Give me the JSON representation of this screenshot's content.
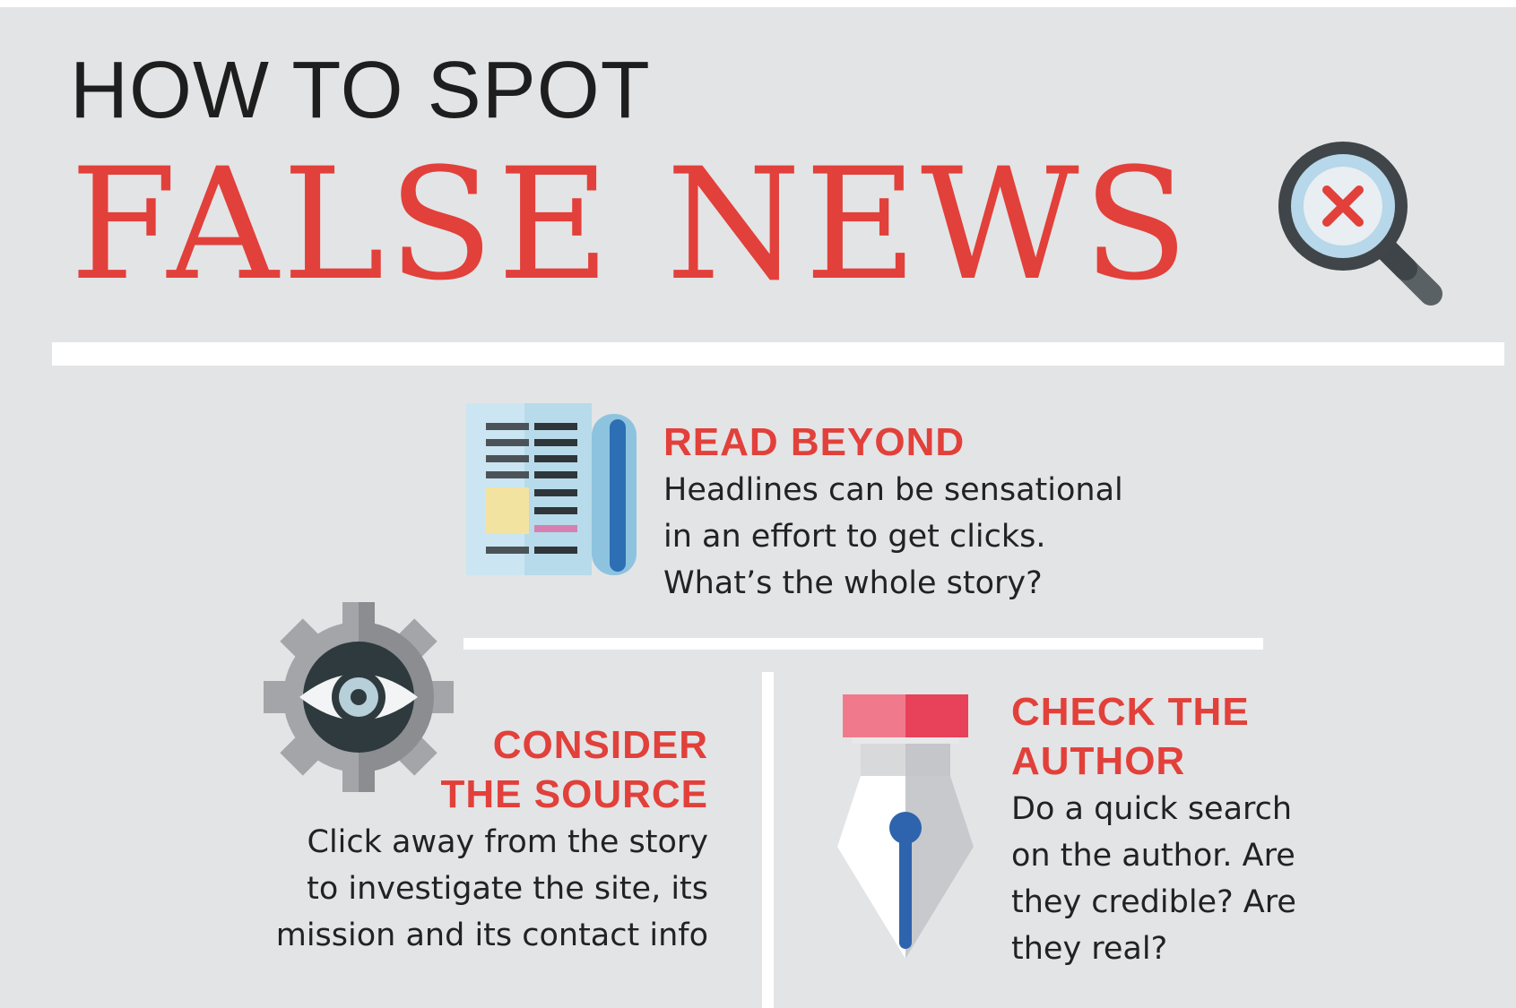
{
  "title": {
    "line1": "HOW TO SPOT",
    "line2": "FALSE NEWS"
  },
  "colors": {
    "accent_red": "#e2403a",
    "background": "#e3e4e6",
    "text_dark": "#222222",
    "rule": "#ffffff"
  },
  "icons": {
    "title": "magnifying-glass-x-icon",
    "read_beyond": "newspaper-icon",
    "consider_source": "gear-eye-icon",
    "check_author": "fountain-pen-icon"
  },
  "sections": {
    "read_beyond": {
      "heading": "READ BEYOND",
      "body_lines": [
        "Headlines can be sensational",
        "in an effort to get clicks.",
        "What’s the whole story?"
      ]
    },
    "consider_source": {
      "heading_lines": [
        "CONSIDER",
        "THE SOURCE"
      ],
      "body_lines": [
        "Click away from the story",
        "to investigate the site, its",
        "mission and its contact info"
      ]
    },
    "check_author": {
      "heading_lines": [
        "CHECK THE",
        "AUTHOR"
      ],
      "body_lines": [
        "Do a quick search",
        "on the author. Are",
        "they credible? Are",
        "they real?"
      ]
    }
  }
}
